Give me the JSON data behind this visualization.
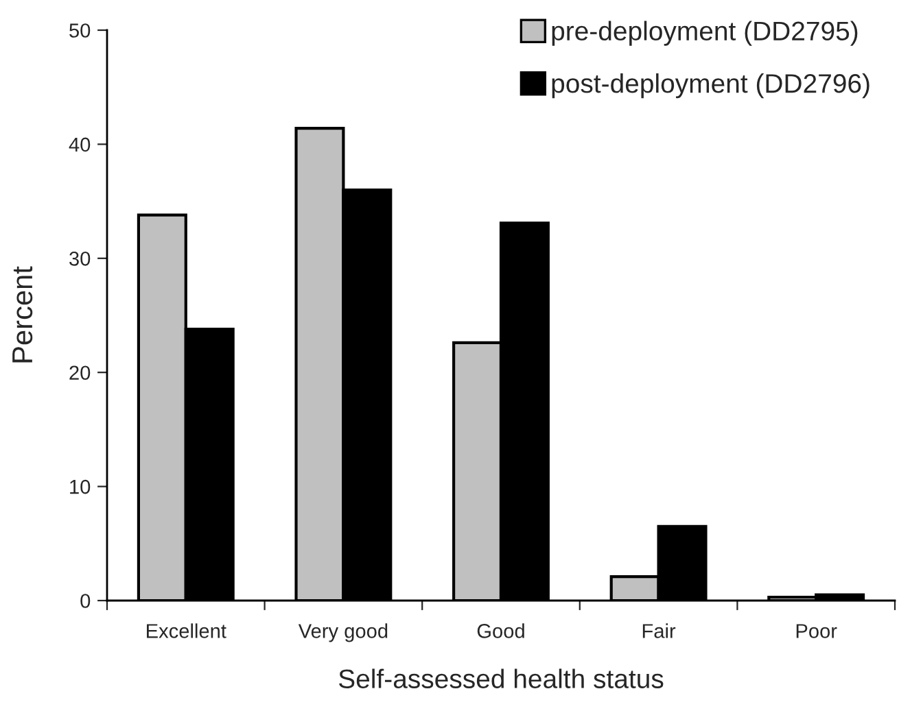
{
  "chart_data": {
    "type": "bar",
    "xlabel": "Self-assessed health status",
    "ylabel": "Percent",
    "categories": [
      "Excellent",
      "Very good",
      "Good",
      "Fair",
      "Poor"
    ],
    "series": [
      {
        "name": "pre-deployment (DD2795)",
        "color": "#c0c0c0",
        "values": [
          33.8,
          41.4,
          22.6,
          2.1,
          0.3
        ]
      },
      {
        "name": "post-deployment (DD2796)",
        "color": "#000000",
        "values": [
          23.8,
          36.0,
          33.1,
          6.5,
          0.5
        ]
      }
    ],
    "ylim": [
      0,
      50
    ],
    "yticks": [
      0,
      10,
      20,
      30,
      40,
      50
    ],
    "grid": false,
    "legend": "top right"
  }
}
